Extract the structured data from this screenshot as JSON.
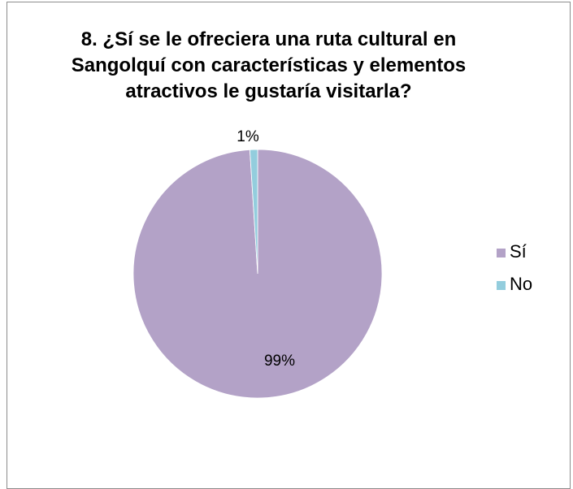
{
  "chart_data": {
    "type": "pie",
    "title_lines": [
      "8. ¿Sí se le ofreciera una ruta cultural en",
      "Sangolquí con características y elementos",
      "atractivos le gustaría visitarla?"
    ],
    "categories": [
      "Sí",
      "No"
    ],
    "values": [
      99,
      1
    ],
    "data_labels": [
      "99%",
      "1%"
    ],
    "colors": [
      "#b3a2c7",
      "#93cddd"
    ],
    "legend": {
      "placement": "right",
      "entries": [
        "Sí",
        "No"
      ]
    }
  }
}
